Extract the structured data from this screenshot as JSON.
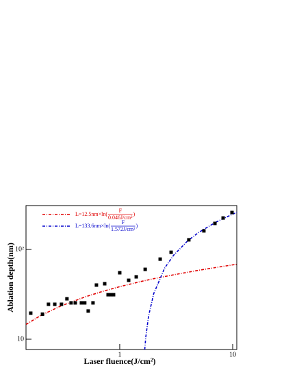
{
  "chart_data": {
    "type": "scatter",
    "x_label": "Laser fluence(J/cm²)",
    "y_label": "Ablation depth(nm)",
    "xlog": true,
    "ylog": true,
    "xlim": [
      0.148,
      10.87
    ],
    "ylim": [
      7.68,
      308
    ],
    "xticks": [
      1,
      10
    ],
    "yticks": [
      10,
      {
        "value": 100,
        "label": "10²"
      }
    ],
    "points": {
      "color": "#000000",
      "x": [
        0.163,
        0.207,
        0.234,
        0.266,
        0.305,
        0.341,
        0.371,
        0.404,
        0.458,
        0.49,
        0.526,
        0.58,
        0.622,
        0.736,
        0.789,
        0.834,
        0.882,
        1.0,
        1.2,
        1.4,
        1.68,
        2.28,
        2.85,
        4.09,
        5.56,
        6.96,
        8.23,
        9.86
      ],
      "values": [
        19.5,
        19,
        24.5,
        24.5,
        24.5,
        28.2,
        25.4,
        25.4,
        25.4,
        25.4,
        20.6,
        25.4,
        40.1,
        41.5,
        31.3,
        31.3,
        31.3,
        55,
        45.3,
        49.5,
        60,
        78,
        93,
        128,
        161,
        195,
        224,
        258
      ]
    },
    "series": [
      {
        "name": "L=12.5nm×ln(",
        "name_numerator": "F",
        "name_denominator": "0.046J/cm²",
        "name_suffix": ")",
        "color": "#e00000",
        "x": [
          0.148,
          0.2,
          0.3,
          0.5,
          0.7,
          1,
          1.5,
          2,
          3,
          5,
          7,
          10,
          10.87
        ],
        "values": [
          14.6,
          18.4,
          23.4,
          29.8,
          34.0,
          38.5,
          43.6,
          47.2,
          52.2,
          58.6,
          62.8,
          67.3,
          68.3
        ]
      },
      {
        "name": "L=133.6nm×ln(",
        "name_numerator": "F",
        "name_denominator": "1.572J/cm²",
        "name_suffix": ")",
        "color": "#0000cc",
        "x": [
          1.665,
          1.7,
          1.8,
          2,
          2.5,
          3,
          4,
          5,
          7,
          10,
          10.87
        ],
        "values": [
          7.68,
          10.5,
          18.1,
          32.2,
          62.0,
          86.3,
          124.8,
          154.6,
          199.5,
          247.2,
          258.3
        ]
      }
    ]
  }
}
